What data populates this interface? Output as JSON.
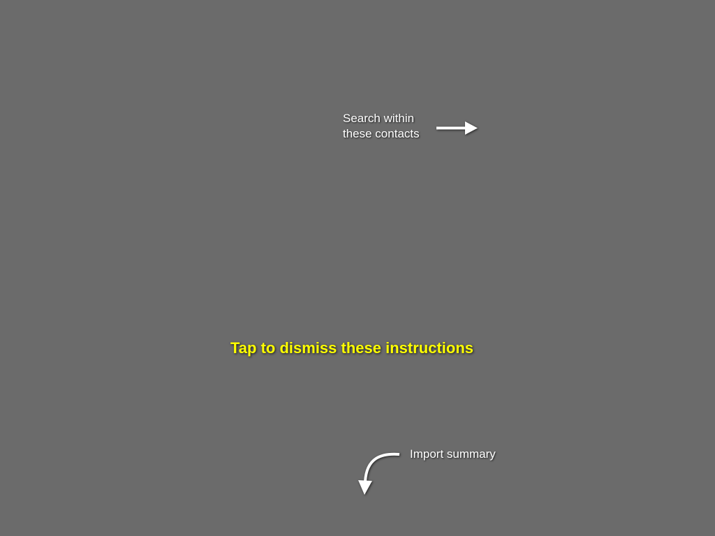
{
  "overlay": {
    "background_color": "#6b6b6b",
    "dismiss_text": "Tap to dismiss these instructions",
    "dismiss_color": "#ffff00"
  },
  "hints": {
    "search_line1": "Search within",
    "search_line2": "these contacts",
    "search_arrow_icon": "arrow-right-icon",
    "import_label": "Import summary",
    "import_arrow_icon": "curved-arrow-down-icon"
  }
}
